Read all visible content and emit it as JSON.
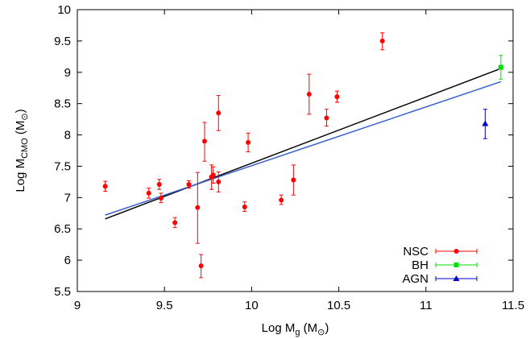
{
  "chart_data": {
    "type": "scatter",
    "xlabel": {
      "main": "Log M",
      "sub": "g",
      "unit": "(M",
      "sun": "⊙",
      "close": ")"
    },
    "ylabel": {
      "main": "Log M",
      "sub": "CMO",
      "unit": "(M",
      "sun": "⊙",
      "close": ")"
    },
    "xlim": [
      9,
      11.5
    ],
    "ylim": [
      5.5,
      10
    ],
    "xticks": [
      9,
      9.5,
      10,
      10.5,
      11,
      11.5
    ],
    "xtick_labels": [
      "9",
      "9.5",
      "10",
      "10.5",
      "11",
      "11.5"
    ],
    "yticks": [
      5.5,
      6,
      6.5,
      7,
      7.5,
      8,
      8.5,
      9,
      9.5,
      10
    ],
    "ytick_labels": [
      "5.5",
      "6",
      "6.5",
      "7",
      "7.5",
      "8",
      "8.5",
      "9",
      "9.5",
      "10"
    ],
    "grid": false,
    "legend_position": "bottom-right",
    "series": [
      {
        "name": "NSC",
        "color": "#ff0000",
        "marker": "circle",
        "points": [
          {
            "x": 9.16,
            "y": 7.18,
            "lo": 7.1,
            "hi": 7.26
          },
          {
            "x": 9.41,
            "y": 7.07,
            "lo": 6.99,
            "hi": 7.15
          },
          {
            "x": 9.47,
            "y": 7.21,
            "lo": 7.13,
            "hi": 7.29
          },
          {
            "x": 9.48,
            "y": 6.99,
            "lo": 6.92,
            "hi": 7.07
          },
          {
            "x": 9.56,
            "y": 6.6,
            "lo": 6.52,
            "hi": 6.68
          },
          {
            "x": 9.64,
            "y": 7.21,
            "lo": 7.15,
            "hi": 7.27
          },
          {
            "x": 9.69,
            "y": 6.84,
            "lo": 6.27,
            "hi": 7.4
          },
          {
            "x": 9.71,
            "y": 5.91,
            "lo": 5.72,
            "hi": 6.09
          },
          {
            "x": 9.73,
            "y": 7.9,
            "lo": 7.58,
            "hi": 8.2
          },
          {
            "x": 9.77,
            "y": 7.33,
            "lo": 7.13,
            "hi": 7.52
          },
          {
            "x": 9.78,
            "y": 7.36,
            "lo": 7.23,
            "hi": 7.49
          },
          {
            "x": 9.81,
            "y": 8.35,
            "lo": 8.07,
            "hi": 8.63
          },
          {
            "x": 9.81,
            "y": 7.25,
            "lo": 7.09,
            "hi": 7.41
          },
          {
            "x": 9.96,
            "y": 6.85,
            "lo": 6.78,
            "hi": 6.93
          },
          {
            "x": 9.98,
            "y": 7.88,
            "lo": 7.73,
            "hi": 8.03
          },
          {
            "x": 10.17,
            "y": 6.96,
            "lo": 6.89,
            "hi": 7.04
          },
          {
            "x": 10.24,
            "y": 7.28,
            "lo": 7.04,
            "hi": 7.52
          },
          {
            "x": 10.33,
            "y": 8.65,
            "lo": 8.33,
            "hi": 8.97
          },
          {
            "x": 10.43,
            "y": 8.27,
            "lo": 8.14,
            "hi": 8.41
          },
          {
            "x": 10.49,
            "y": 8.61,
            "lo": 8.52,
            "hi": 8.7
          },
          {
            "x": 10.75,
            "y": 9.5,
            "lo": 9.36,
            "hi": 9.63
          }
        ]
      },
      {
        "name": "BH",
        "color": "#00e000",
        "marker": "square",
        "points": [
          {
            "x": 11.43,
            "y": 9.08,
            "lo": 8.89,
            "hi": 9.27
          }
        ]
      },
      {
        "name": "AGN",
        "color": "#0000cc",
        "marker": "triangle",
        "points": [
          {
            "x": 11.34,
            "y": 8.18,
            "lo": 7.94,
            "hi": 8.41
          }
        ]
      }
    ],
    "fit_lines": [
      {
        "color": "#000000",
        "x": [
          9.16,
          11.43
        ],
        "y": [
          6.66,
          9.06
        ]
      },
      {
        "color": "#3a5fcd",
        "x": [
          9.16,
          11.43
        ],
        "y": [
          6.72,
          8.85
        ]
      }
    ]
  }
}
